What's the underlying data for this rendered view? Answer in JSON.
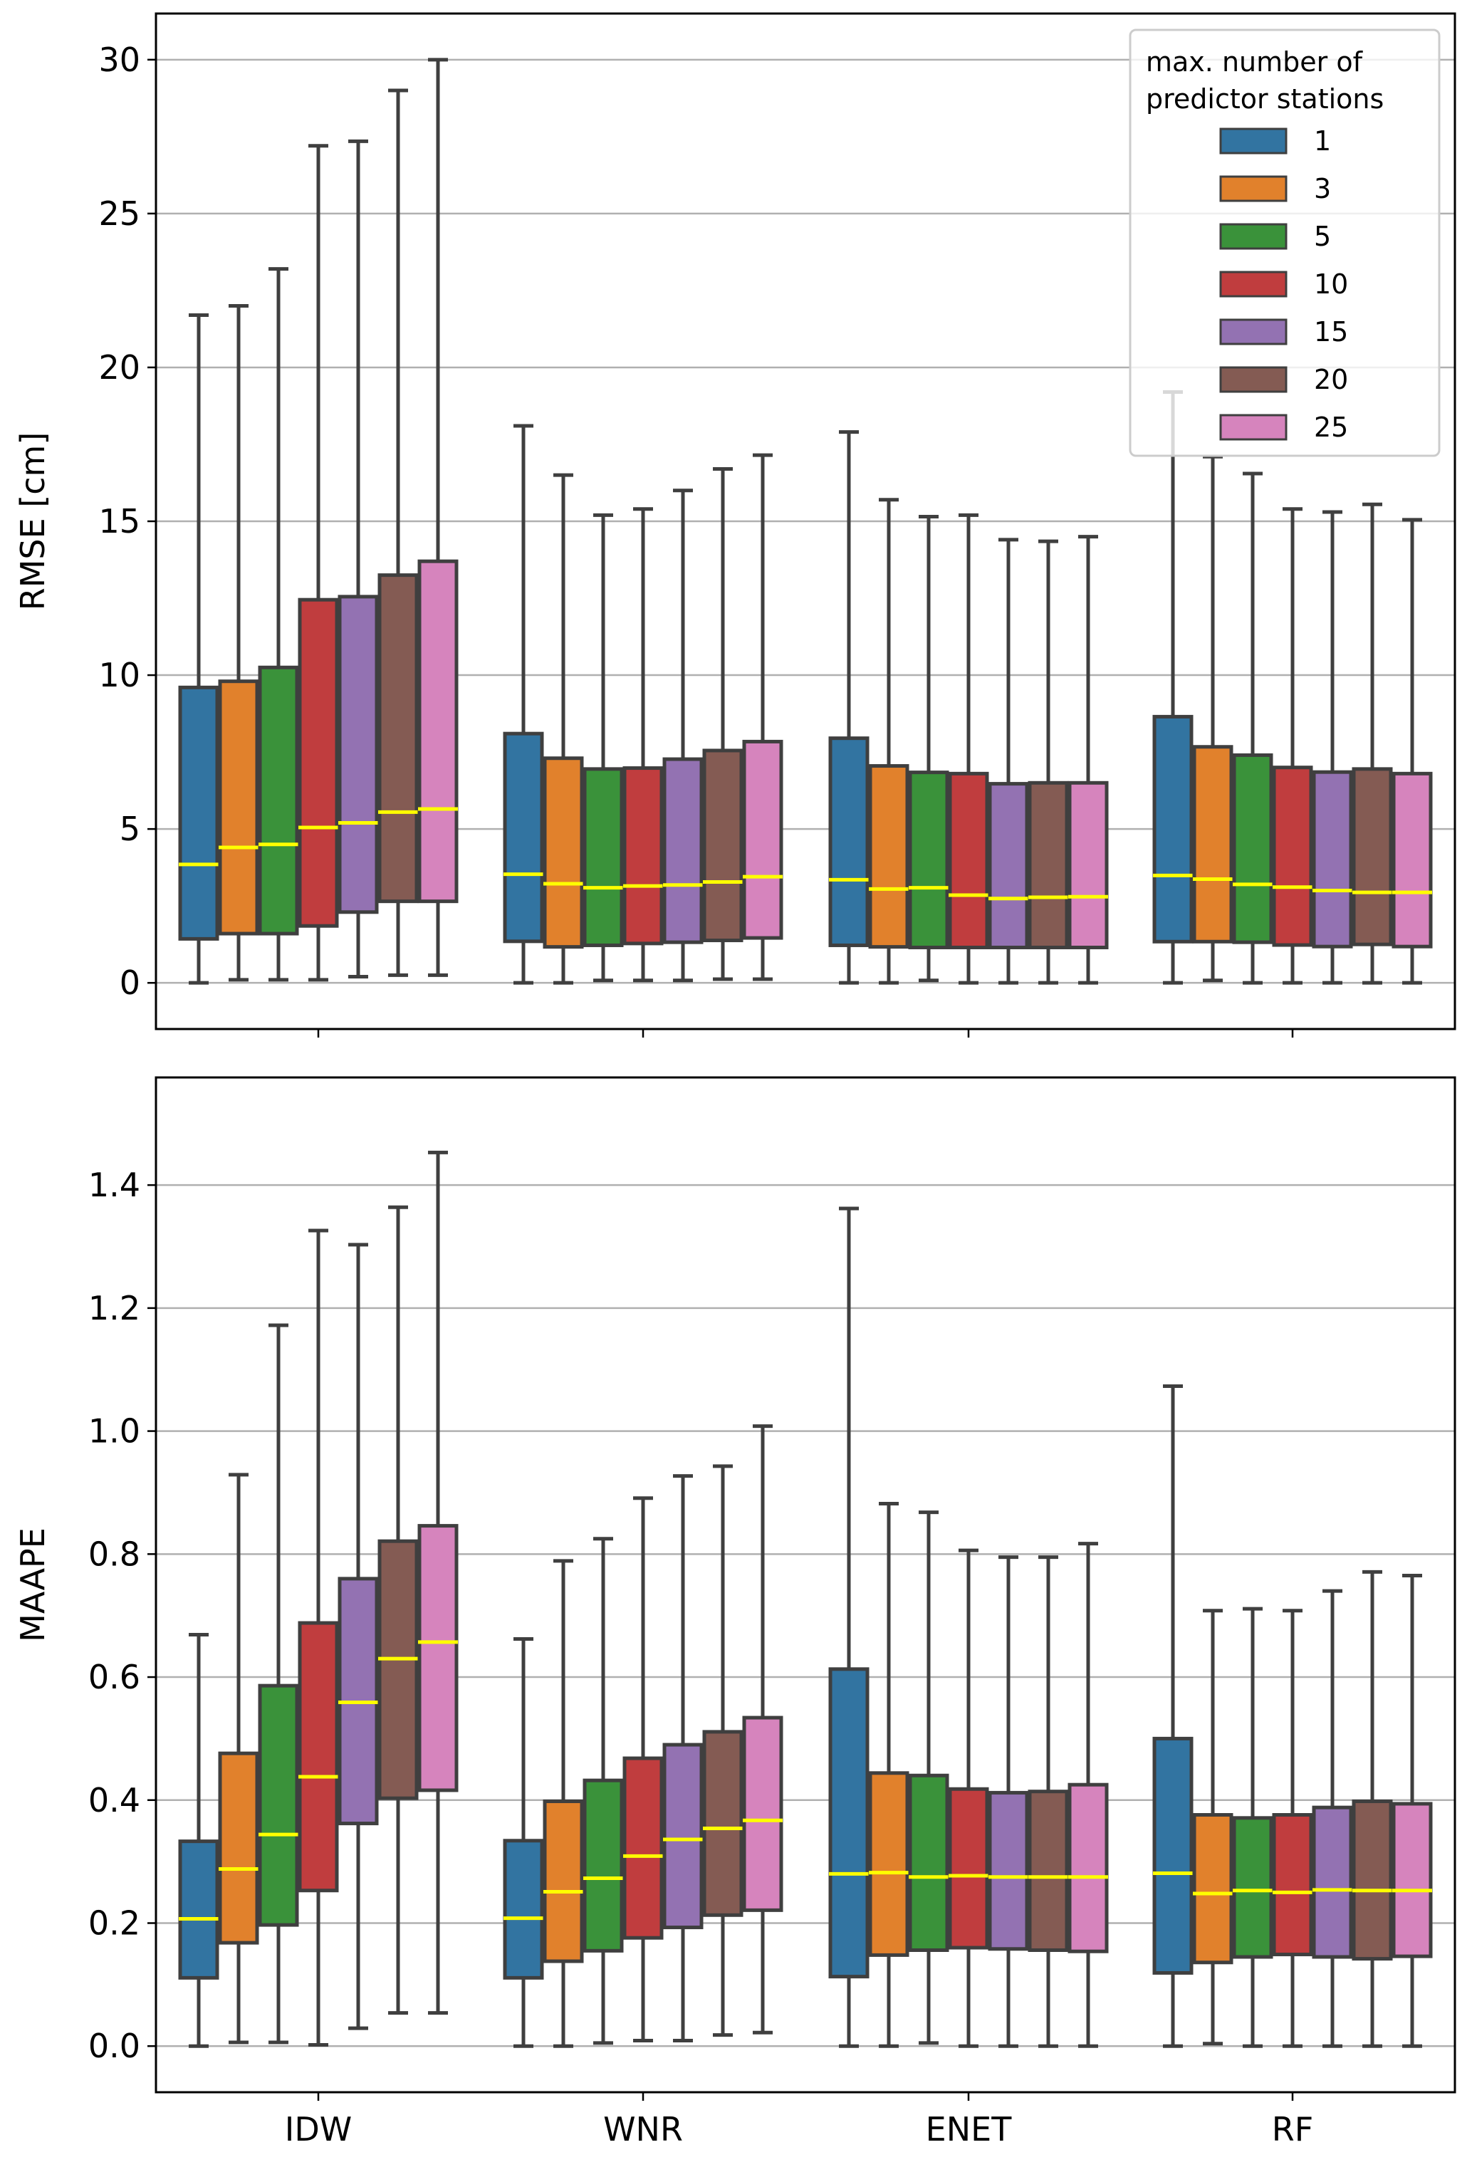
{
  "chart_data": [
    {
      "type": "box",
      "panel": "top",
      "title": "",
      "xlabel": "",
      "ylabel": "RMSE [cm]",
      "ylim": [
        -1.5,
        31.5
      ],
      "yticks": [
        0,
        5,
        10,
        15,
        20,
        25,
        30
      ],
      "ytick_labels": [
        "0",
        "5",
        "10",
        "15",
        "20",
        "25",
        "30"
      ],
      "grid": "y",
      "categories": [
        "IDW",
        "WNR",
        "ENET",
        "RF"
      ],
      "show_xtick_labels": false,
      "legend": {
        "title_lines": [
          "max. number of",
          "predictor stations"
        ],
        "placement": "top-right"
      },
      "series": [
        {
          "name": "1",
          "color": "#3274a1",
          "stats": [
            {
              "whislo": 0.0,
              "q1": 1.43,
              "med": 3.85,
              "q3": 9.6,
              "whishi": 21.7
            },
            {
              "whislo": 0.0,
              "q1": 1.35,
              "med": 3.53,
              "q3": 8.1,
              "whishi": 18.1
            },
            {
              "whislo": 0.0,
              "q1": 1.22,
              "med": 3.35,
              "q3": 7.95,
              "whishi": 17.9
            },
            {
              "whislo": 0.0,
              "q1": 1.34,
              "med": 3.49,
              "q3": 8.65,
              "whishi": 19.2
            }
          ]
        },
        {
          "name": "3",
          "color": "#e1812c",
          "stats": [
            {
              "whislo": 0.1,
              "q1": 1.6,
              "med": 4.4,
              "q3": 9.8,
              "whishi": 22.0
            },
            {
              "whislo": 0.0,
              "q1": 1.17,
              "med": 3.22,
              "q3": 7.3,
              "whishi": 16.5
            },
            {
              "whislo": 0.0,
              "q1": 1.17,
              "med": 3.05,
              "q3": 7.05,
              "whishi": 15.7
            },
            {
              "whislo": 0.08,
              "q1": 1.34,
              "med": 3.37,
              "q3": 7.67,
              "whishi": 17.1
            }
          ]
        },
        {
          "name": "5",
          "color": "#3a923a",
          "stats": [
            {
              "whislo": 0.1,
              "q1": 1.6,
              "med": 4.5,
              "q3": 10.25,
              "whishi": 23.2
            },
            {
              "whislo": 0.08,
              "q1": 1.22,
              "med": 3.09,
              "q3": 6.95,
              "whishi": 15.2
            },
            {
              "whislo": 0.08,
              "q1": 1.15,
              "med": 3.09,
              "q3": 6.84,
              "whishi": 15.15
            },
            {
              "whislo": 0.0,
              "q1": 1.32,
              "med": 3.2,
              "q3": 7.4,
              "whishi": 16.55
            }
          ]
        },
        {
          "name": "10",
          "color": "#c03d3e",
          "stats": [
            {
              "whislo": 0.1,
              "q1": 1.85,
              "med": 5.05,
              "q3": 12.45,
              "whishi": 27.2
            },
            {
              "whislo": 0.08,
              "q1": 1.28,
              "med": 3.15,
              "q3": 6.98,
              "whishi": 15.4
            },
            {
              "whislo": 0.0,
              "q1": 1.15,
              "med": 2.85,
              "q3": 6.8,
              "whishi": 15.2
            },
            {
              "whislo": 0.0,
              "q1": 1.23,
              "med": 3.11,
              "q3": 7.0,
              "whishi": 15.4
            }
          ]
        },
        {
          "name": "15",
          "color": "#9372b2",
          "stats": [
            {
              "whislo": 0.2,
              "q1": 2.3,
              "med": 5.2,
              "q3": 12.55,
              "whishi": 27.35
            },
            {
              "whislo": 0.08,
              "q1": 1.32,
              "med": 3.18,
              "q3": 7.27,
              "whishi": 16.0
            },
            {
              "whislo": 0.0,
              "q1": 1.15,
              "med": 2.74,
              "q3": 6.47,
              "whishi": 14.4
            },
            {
              "whislo": 0.0,
              "q1": 1.18,
              "med": 3.0,
              "q3": 6.85,
              "whishi": 15.3
            }
          ]
        },
        {
          "name": "20",
          "color": "#845b53",
          "stats": [
            {
              "whislo": 0.25,
              "q1": 2.65,
              "med": 5.55,
              "q3": 13.25,
              "whishi": 29.0
            },
            {
              "whislo": 0.12,
              "q1": 1.38,
              "med": 3.28,
              "q3": 7.55,
              "whishi": 16.7
            },
            {
              "whislo": 0.0,
              "q1": 1.15,
              "med": 2.78,
              "q3": 6.5,
              "whishi": 14.35
            },
            {
              "whislo": 0.0,
              "q1": 1.25,
              "med": 2.94,
              "q3": 6.95,
              "whishi": 15.55
            }
          ]
        },
        {
          "name": "25",
          "color": "#d684bd",
          "stats": [
            {
              "whislo": 0.25,
              "q1": 2.65,
              "med": 5.65,
              "q3": 13.7,
              "whishi": 30.0
            },
            {
              "whislo": 0.12,
              "q1": 1.46,
              "med": 3.45,
              "q3": 7.84,
              "whishi": 17.15
            },
            {
              "whislo": 0.0,
              "q1": 1.15,
              "med": 2.8,
              "q3": 6.5,
              "whishi": 14.5
            },
            {
              "whislo": 0.0,
              "q1": 1.18,
              "med": 2.94,
              "q3": 6.8,
              "whishi": 15.05
            }
          ]
        }
      ]
    },
    {
      "type": "box",
      "panel": "bottom",
      "title": "",
      "xlabel": "",
      "ylabel": "MAAPE",
      "ylim": [
        -0.075,
        1.575
      ],
      "yticks": [
        0.0,
        0.2,
        0.4,
        0.6,
        0.8,
        1.0,
        1.2,
        1.4
      ],
      "ytick_labels": [
        "0.0",
        "0.2",
        "0.4",
        "0.6",
        "0.8",
        "1.0",
        "1.2",
        "1.4"
      ],
      "grid": "y",
      "categories": [
        "IDW",
        "WNR",
        "ENET",
        "RF"
      ],
      "show_xtick_labels": true,
      "series": [
        {
          "name": "1",
          "color": "#3274a1",
          "stats": [
            {
              "whislo": 0.0,
              "q1": 0.111,
              "med": 0.207,
              "q3": 0.333,
              "whishi": 0.669
            },
            {
              "whislo": 0.0,
              "q1": 0.111,
              "med": 0.208,
              "q3": 0.334,
              "whishi": 0.662
            },
            {
              "whislo": 0.0,
              "q1": 0.113,
              "med": 0.28,
              "q3": 0.613,
              "whishi": 1.362
            },
            {
              "whislo": 0.0,
              "q1": 0.119,
              "med": 0.281,
              "q3": 0.5,
              "whishi": 1.073
            }
          ]
        },
        {
          "name": "3",
          "color": "#e1812c",
          "stats": [
            {
              "whislo": 0.006,
              "q1": 0.168,
              "med": 0.288,
              "q3": 0.476,
              "whishi": 0.929
            },
            {
              "whislo": 0.0,
              "q1": 0.138,
              "med": 0.251,
              "q3": 0.398,
              "whishi": 0.789
            },
            {
              "whislo": 0.0,
              "q1": 0.148,
              "med": 0.282,
              "q3": 0.444,
              "whishi": 0.882
            },
            {
              "whislo": 0.004,
              "q1": 0.136,
              "med": 0.248,
              "q3": 0.376,
              "whishi": 0.708
            }
          ]
        },
        {
          "name": "5",
          "color": "#3a923a",
          "stats": [
            {
              "whislo": 0.006,
              "q1": 0.197,
              "med": 0.344,
              "q3": 0.586,
              "whishi": 1.172
            },
            {
              "whislo": 0.005,
              "q1": 0.155,
              "med": 0.273,
              "q3": 0.432,
              "whishi": 0.825
            },
            {
              "whislo": 0.005,
              "q1": 0.156,
              "med": 0.275,
              "q3": 0.44,
              "whishi": 0.868
            },
            {
              "whislo": 0.0,
              "q1": 0.145,
              "med": 0.253,
              "q3": 0.371,
              "whishi": 0.711
            }
          ]
        },
        {
          "name": "10",
          "color": "#c03d3e",
          "stats": [
            {
              "whislo": 0.002,
              "q1": 0.253,
              "med": 0.438,
              "q3": 0.688,
              "whishi": 1.326
            },
            {
              "whislo": 0.009,
              "q1": 0.176,
              "med": 0.309,
              "q3": 0.468,
              "whishi": 0.891
            },
            {
              "whislo": 0.0,
              "q1": 0.16,
              "med": 0.277,
              "q3": 0.418,
              "whishi": 0.806
            },
            {
              "whislo": 0.0,
              "q1": 0.149,
              "med": 0.25,
              "q3": 0.376,
              "whishi": 0.708
            }
          ]
        },
        {
          "name": "15",
          "color": "#9372b2",
          "stats": [
            {
              "whislo": 0.029,
              "q1": 0.362,
              "med": 0.559,
              "q3": 0.76,
              "whishi": 1.303
            },
            {
              "whislo": 0.009,
              "q1": 0.193,
              "med": 0.336,
              "q3": 0.49,
              "whishi": 0.927
            },
            {
              "whislo": 0.0,
              "q1": 0.158,
              "med": 0.275,
              "q3": 0.412,
              "whishi": 0.795
            },
            {
              "whislo": 0.0,
              "q1": 0.145,
              "med": 0.254,
              "q3": 0.388,
              "whishi": 0.74
            }
          ]
        },
        {
          "name": "20",
          "color": "#845b53",
          "stats": [
            {
              "whislo": 0.054,
              "q1": 0.403,
              "med": 0.63,
              "q3": 0.821,
              "whishi": 1.364
            },
            {
              "whislo": 0.018,
              "q1": 0.213,
              "med": 0.354,
              "q3": 0.511,
              "whishi": 0.943
            },
            {
              "whislo": 0.0,
              "q1": 0.156,
              "med": 0.275,
              "q3": 0.414,
              "whishi": 0.795
            },
            {
              "whislo": 0.0,
              "q1": 0.142,
              "med": 0.253,
              "q3": 0.398,
              "whishi": 0.771
            }
          ]
        },
        {
          "name": "25",
          "color": "#d684bd",
          "stats": [
            {
              "whislo": 0.054,
              "q1": 0.416,
              "med": 0.657,
              "q3": 0.846,
              "whishi": 1.453
            },
            {
              "whislo": 0.022,
              "q1": 0.221,
              "med": 0.367,
              "q3": 0.534,
              "whishi": 1.008
            },
            {
              "whislo": 0.0,
              "q1": 0.154,
              "med": 0.275,
              "q3": 0.425,
              "whishi": 0.817
            },
            {
              "whislo": 0.0,
              "q1": 0.146,
              "med": 0.253,
              "q3": 0.394,
              "whishi": 0.765
            }
          ]
        }
      ]
    }
  ],
  "style": {
    "median_color": "#ffff00",
    "box_edge_color": "#3f3f3f",
    "grid_color": "#b0b0b0",
    "spine_color": "#000000"
  }
}
